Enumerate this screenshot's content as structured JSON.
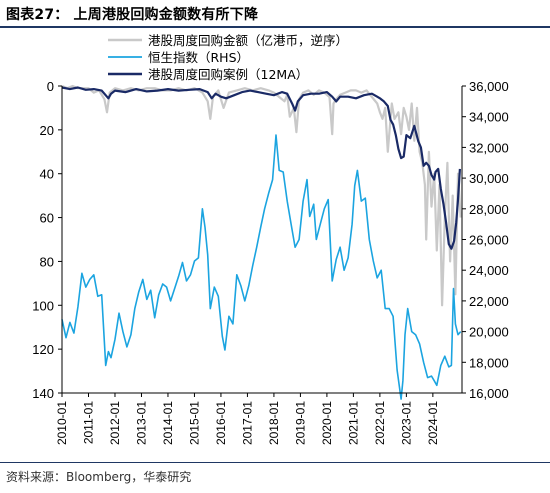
{
  "figure": {
    "title": "图表27： 上周港股回购金额数有所下降",
    "source": "资料来源：Bloomberg，华泰研究"
  },
  "chart_data": {
    "type": "line",
    "legend": [
      {
        "name": "港股周度回购金额（亿港币，逆序）",
        "color": "#c9c9c9",
        "axis": "left"
      },
      {
        "name": "恒生指数（RHS）",
        "color": "#1ba4e0",
        "axis": "right"
      },
      {
        "name": "港股周度回购案例（12MA）",
        "color": "#1a2a66",
        "axis": "right-scaled"
      }
    ],
    "legend_position": "top-center",
    "left_axis": {
      "ticks": [
        "0",
        "20",
        "40",
        "60",
        "80",
        "100",
        "120",
        "140"
      ],
      "range": [
        0,
        140
      ],
      "reversed": true
    },
    "right_axis": {
      "ticks": [
        "16,000",
        "18,000",
        "20,000",
        "22,000",
        "24,000",
        "26,000",
        "28,000",
        "30,000",
        "32,000",
        "34,000",
        "36,000"
      ],
      "range": [
        16000,
        36000
      ]
    },
    "x_ticks": [
      "2010-01",
      "2011-01",
      "2012-01",
      "2013-01",
      "2014-01",
      "2015-01",
      "2016-01",
      "2017-01",
      "2018-01",
      "2019-01",
      "2020-01",
      "2021-01",
      "2022-01",
      "2023-01",
      "2024-01"
    ],
    "x_range": [
      2010.0,
      2025.1
    ],
    "series": [
      {
        "name": "港股周度回购金额（亿港币，逆序）",
        "axis": "left",
        "x": [
          2010.0,
          2010.2,
          2010.4,
          2010.6,
          2010.8,
          2011.0,
          2011.2,
          2011.4,
          2011.6,
          2011.7,
          2011.8,
          2012.0,
          2012.3,
          2012.6,
          2012.9,
          2013.2,
          2013.5,
          2013.8,
          2014.1,
          2014.4,
          2014.7,
          2015.0,
          2015.3,
          2015.5,
          2015.6,
          2015.7,
          2015.9,
          2016.0,
          2016.1,
          2016.3,
          2016.6,
          2016.9,
          2017.2,
          2017.5,
          2017.8,
          2018.0,
          2018.2,
          2018.4,
          2018.5,
          2018.6,
          2018.75,
          2018.85,
          2018.95,
          2019.1,
          2019.3,
          2019.5,
          2019.7,
          2019.9,
          2020.1,
          2020.2,
          2020.25,
          2020.35,
          2020.5,
          2020.7,
          2020.9,
          2021.1,
          2021.3,
          2021.5,
          2021.7,
          2021.9,
          2022.0,
          2022.1,
          2022.2,
          2022.3,
          2022.45,
          2022.55,
          2022.7,
          2022.8,
          2022.9,
          2023.0,
          2023.1,
          2023.2,
          2023.3,
          2023.4,
          2023.5,
          2023.6,
          2023.7,
          2023.75,
          2023.85,
          2023.95,
          2024.05,
          2024.15,
          2024.25,
          2024.35,
          2024.45,
          2024.55,
          2024.65,
          2024.75,
          2024.85,
          2024.95,
          2025.05
        ],
        "values": [
          0,
          1,
          0,
          1,
          1,
          1,
          3,
          2,
          6,
          12,
          3,
          1,
          2,
          1,
          2,
          1,
          1,
          2,
          2,
          1,
          2,
          1,
          3,
          7,
          15,
          5,
          2,
          6,
          10,
          3,
          2,
          1,
          2,
          1,
          2,
          3,
          5,
          7,
          4,
          14,
          10,
          21,
          6,
          3,
          2,
          4,
          2,
          3,
          5,
          22,
          8,
          6,
          4,
          3,
          2,
          2,
          3,
          2,
          5,
          8,
          12,
          15,
          10,
          30,
          8,
          15,
          12,
          22,
          10,
          14,
          20,
          8,
          25,
          10,
          30,
          35,
          45,
          70,
          30,
          55,
          40,
          75,
          45,
          100,
          60,
          35,
          80,
          50,
          95,
          40,
          60
        ]
      },
      {
        "name": "恒生指数（RHS）",
        "axis": "right",
        "x": [
          2010.0,
          2010.15,
          2010.3,
          2010.45,
          2010.6,
          2010.75,
          2010.9,
          2011.05,
          2011.2,
          2011.35,
          2011.5,
          2011.65,
          2011.75,
          2011.85,
          2012.0,
          2012.15,
          2012.3,
          2012.45,
          2012.6,
          2012.75,
          2012.9,
          2013.05,
          2013.2,
          2013.35,
          2013.5,
          2013.65,
          2013.8,
          2013.95,
          2014.1,
          2014.25,
          2014.4,
          2014.55,
          2014.7,
          2014.85,
          2015.0,
          2015.15,
          2015.3,
          2015.4,
          2015.5,
          2015.6,
          2015.75,
          2015.9,
          2016.05,
          2016.15,
          2016.3,
          2016.45,
          2016.6,
          2016.75,
          2016.9,
          2017.05,
          2017.2,
          2017.35,
          2017.5,
          2017.65,
          2017.8,
          2017.95,
          2018.08,
          2018.2,
          2018.35,
          2018.5,
          2018.65,
          2018.8,
          2018.95,
          2019.1,
          2019.25,
          2019.35,
          2019.5,
          2019.6,
          2019.75,
          2019.9,
          2020.05,
          2020.2,
          2020.35,
          2020.5,
          2020.65,
          2020.8,
          2020.95,
          2021.05,
          2021.15,
          2021.3,
          2021.45,
          2021.6,
          2021.75,
          2021.9,
          2022.05,
          2022.2,
          2022.35,
          2022.5,
          2022.65,
          2022.8,
          2022.87,
          2022.95,
          2023.05,
          2023.2,
          2023.35,
          2023.5,
          2023.65,
          2023.8,
          2023.95,
          2024.05,
          2024.15,
          2024.3,
          2024.45,
          2024.6,
          2024.7,
          2024.78,
          2024.85,
          2024.95,
          2025.05
        ],
        "values": [
          20800,
          19600,
          20600,
          19900,
          21600,
          23800,
          22900,
          23400,
          23700,
          22300,
          22400,
          17800,
          18700,
          18300,
          19500,
          21200,
          20000,
          19000,
          19800,
          21500,
          22600,
          23400,
          22100,
          22700,
          20900,
          22400,
          23100,
          22900,
          22000,
          22800,
          23600,
          24500,
          23300,
          23700,
          24600,
          24800,
          28000,
          26800,
          25000,
          21500,
          22900,
          22300,
          19700,
          18800,
          21000,
          20500,
          23700,
          23000,
          22000,
          23000,
          24300,
          25500,
          26800,
          28000,
          29000,
          29900,
          32800,
          30500,
          30400,
          28500,
          27000,
          25500,
          26000,
          28500,
          29900,
          27500,
          28300,
          26000,
          27000,
          28000,
          28600,
          23300,
          24700,
          25500,
          24000,
          24800,
          27000,
          29500,
          30500,
          28500,
          28700,
          26000,
          24600,
          23500,
          24000,
          21500,
          21500,
          21000,
          17500,
          15600,
          16800,
          19800,
          21500,
          20000,
          19800,
          19200,
          18000,
          17000,
          17100,
          16800,
          16500,
          17800,
          18400,
          17700,
          17800,
          22800,
          20500,
          19800,
          20000
        ]
      },
      {
        "name": "港股周度回购案例（12MA）",
        "axis": "right-scaled",
        "x": [
          2010.0,
          2010.3,
          2010.6,
          2010.9,
          2011.2,
          2011.5,
          2011.75,
          2011.85,
          2012.0,
          2012.4,
          2012.8,
          2013.2,
          2013.6,
          2014.0,
          2014.4,
          2014.8,
          2015.2,
          2015.5,
          2015.65,
          2015.8,
          2016.0,
          2016.2,
          2016.5,
          2016.8,
          2017.1,
          2017.4,
          2017.7,
          2018.0,
          2018.3,
          2018.5,
          2018.7,
          2018.8,
          2018.9,
          2019.1,
          2019.4,
          2019.7,
          2020.0,
          2020.2,
          2020.35,
          2020.5,
          2020.8,
          2021.1,
          2021.4,
          2021.7,
          2021.9,
          2022.0,
          2022.15,
          2022.3,
          2022.4,
          2022.5,
          2022.6,
          2022.7,
          2022.8,
          2022.9,
          2023.0,
          2023.15,
          2023.3,
          2023.45,
          2023.55,
          2023.65,
          2023.75,
          2023.85,
          2023.95,
          2024.05,
          2024.1,
          2024.2,
          2024.3,
          2024.4,
          2024.5,
          2024.6,
          2024.7,
          2024.8,
          2024.88,
          2024.95,
          2025.02
        ],
        "values": [
          35900,
          35800,
          35900,
          35750,
          35800,
          35700,
          35200,
          35500,
          35700,
          35600,
          35800,
          35650,
          35700,
          35800,
          35700,
          35750,
          35800,
          35600,
          35200,
          35500,
          35300,
          35200,
          35400,
          35600,
          35700,
          35600,
          35500,
          35400,
          35600,
          35500,
          34800,
          34400,
          35000,
          35400,
          35500,
          35500,
          35600,
          35300,
          35000,
          35300,
          35300,
          35200,
          35400,
          35500,
          35300,
          35200,
          35000,
          34700,
          33800,
          33500,
          32800,
          31900,
          31300,
          31400,
          32800,
          32600,
          33400,
          32400,
          32000,
          30800,
          31000,
          30800,
          30200,
          29900,
          30400,
          30600,
          29300,
          28300,
          27100,
          25700,
          25400,
          25900,
          27100,
          28600,
          30600
        ]
      }
    ],
    "grid": false
  }
}
